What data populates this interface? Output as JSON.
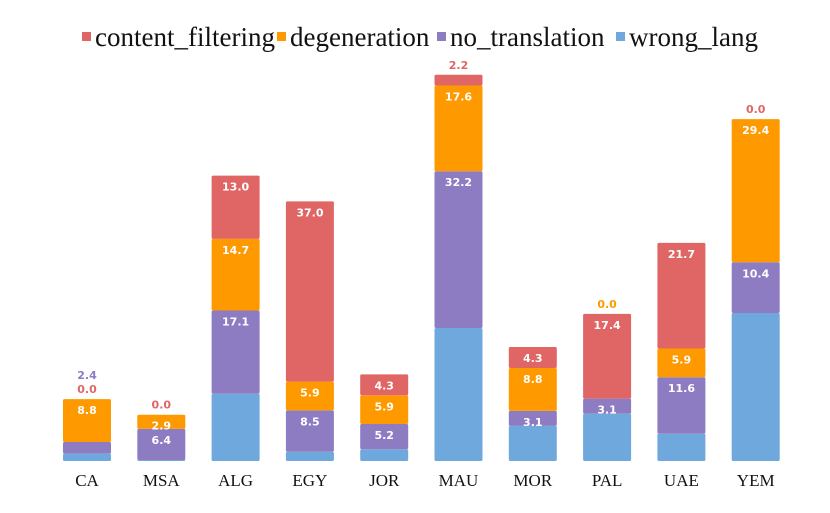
{
  "chart_data": {
    "type": "bar",
    "stacked": true,
    "title": "",
    "xlabel": "",
    "ylabel": "",
    "ylim": [
      0,
      81
    ],
    "grid": false,
    "legend_position": "top",
    "categories": [
      "CA",
      "MSA",
      "ALG",
      "EGY",
      "JOR",
      "MAU",
      "MOR",
      "PAL",
      "UAE",
      "YEM"
    ],
    "series": [
      {
        "name": "wrong_lang",
        "color": "#6FA8DC",
        "values": [
          1.5,
          0.2,
          13.8,
          1.9,
          2.4,
          27.3,
          7.2,
          9.7,
          5.6,
          30.4
        ]
      },
      {
        "name": "no_translation",
        "color": "#8E7CC3",
        "values": [
          2.4,
          6.4,
          17.1,
          8.5,
          5.2,
          32.2,
          3.1,
          3.1,
          11.6,
          10.4
        ]
      },
      {
        "name": "degeneration",
        "color": "#FF9900",
        "values": [
          8.8,
          2.9,
          14.7,
          5.9,
          5.9,
          17.6,
          8.8,
          0.0,
          5.9,
          29.4
        ]
      },
      {
        "name": "content_filtering",
        "color": "#E06666",
        "values": [
          0.0,
          0.0,
          13.0,
          37.0,
          4.3,
          2.2,
          4.3,
          17.4,
          21.7,
          0.0
        ]
      }
    ],
    "legend_order": [
      "content_filtering",
      "degeneration",
      "no_translation",
      "wrong_lang"
    ]
  }
}
